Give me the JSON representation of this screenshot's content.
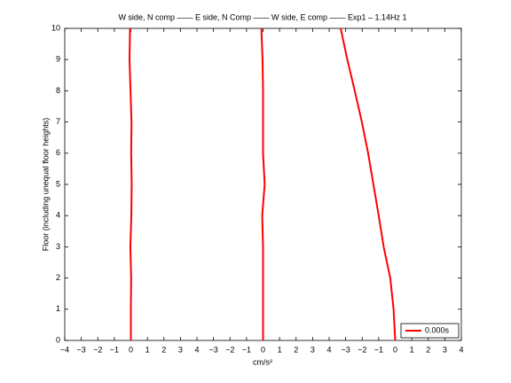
{
  "chart_data": {
    "type": "line",
    "title": "W side, N comp —— E side, N Comp —— W side, E comp —— Exp1 – 1.14Hz 1",
    "x_label": "cm/s²",
    "y_label": "Floor (including unequal floor heights)",
    "legend": "0.000s",
    "legend_location": "lower right",
    "xlim": [
      0,
      24
    ],
    "xticks": [
      {
        "value": 0,
        "label": "−4"
      },
      {
        "value": 1,
        "label": "−3"
      },
      {
        "value": 2,
        "label": "−2"
      },
      {
        "value": 3,
        "label": "−1"
      },
      {
        "value": 4,
        "label": "0"
      },
      {
        "value": 5,
        "label": "1"
      },
      {
        "value": 6,
        "label": "2"
      },
      {
        "value": 7,
        "label": "3"
      },
      {
        "value": 8,
        "label": "4"
      },
      {
        "value": 9,
        "label": "−3"
      },
      {
        "value": 10,
        "label": "−2"
      },
      {
        "value": 11,
        "label": "−1"
      },
      {
        "value": 12,
        "label": "0"
      },
      {
        "value": 13,
        "label": "1"
      },
      {
        "value": 14,
        "label": "2"
      },
      {
        "value": 15,
        "label": "3"
      },
      {
        "value": 16,
        "label": "4"
      },
      {
        "value": 17,
        "label": "−3"
      },
      {
        "value": 18,
        "label": "−2"
      },
      {
        "value": 19,
        "label": "−1"
      },
      {
        "value": 20,
        "label": "0"
      },
      {
        "value": 21,
        "label": "1"
      },
      {
        "value": 22,
        "label": "2"
      },
      {
        "value": 23,
        "label": "3"
      },
      {
        "value": 24,
        "label": "4"
      }
    ],
    "ylim": [
      0,
      10
    ],
    "yticks": [
      0,
      1,
      2,
      3,
      4,
      5,
      6,
      7,
      8,
      9,
      10
    ],
    "series": [
      {
        "color": "#ff0000",
        "x": [
          4.0,
          4.0,
          4.02,
          3.97,
          4.03,
          4.05,
          4.02,
          4.04,
          3.98,
          3.92,
          3.95
        ],
        "values": [
          0,
          1,
          2,
          3,
          4,
          5,
          6,
          7,
          8,
          9,
          10
        ]
      },
      {
        "color": "#ff0000",
        "x": [
          12.0,
          12.0,
          12.0,
          12.0,
          11.95,
          12.1,
          12.0,
          12.0,
          12.0,
          11.97,
          11.9
        ],
        "values": [
          0,
          1,
          2,
          3,
          4,
          5,
          6,
          7,
          8,
          9,
          10
        ]
      },
      {
        "color": "#ff0000",
        "x": [
          20.0,
          19.9,
          19.7,
          19.3,
          19.0,
          18.68,
          18.36,
          17.98,
          17.55,
          17.1,
          16.7
        ],
        "values": [
          0,
          1,
          2,
          3,
          4,
          5,
          6,
          7,
          8,
          9,
          10
        ]
      }
    ]
  }
}
